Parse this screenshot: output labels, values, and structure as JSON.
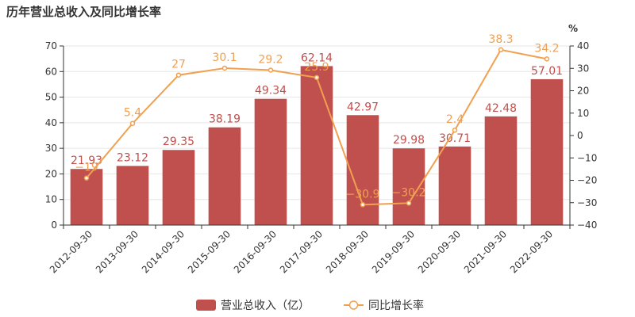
{
  "title": "历年营业总收入及同比增长率",
  "chart_data": {
    "type": "bar",
    "categories": [
      "2012-09-30",
      "2013-09-30",
      "2014-09-30",
      "2015-09-30",
      "2016-09-30",
      "2017-09-30",
      "2018-09-30",
      "2019-09-30",
      "2020-09-30",
      "2021-09-30",
      "2022-09-30"
    ],
    "series": [
      {
        "name": "营业总收入（亿）",
        "type": "bar",
        "axis": "left",
        "color": "#c0504d",
        "values": [
          21.93,
          23.12,
          29.35,
          38.19,
          49.34,
          62.14,
          42.97,
          29.98,
          30.71,
          42.48,
          57.01
        ]
      },
      {
        "name": "同比增长率",
        "type": "line",
        "axis": "right",
        "color": "#f0a050",
        "values": [
          -19,
          5.4,
          27,
          30.1,
          29.2,
          25.9,
          -30.9,
          -30.2,
          2.4,
          38.3,
          34.2
        ]
      }
    ],
    "left_axis": {
      "min": 0,
      "max": 70,
      "step": 10
    },
    "right_axis": {
      "min": -40,
      "max": 40,
      "step": 10,
      "unit": "%"
    },
    "legend_position": "bottom"
  }
}
